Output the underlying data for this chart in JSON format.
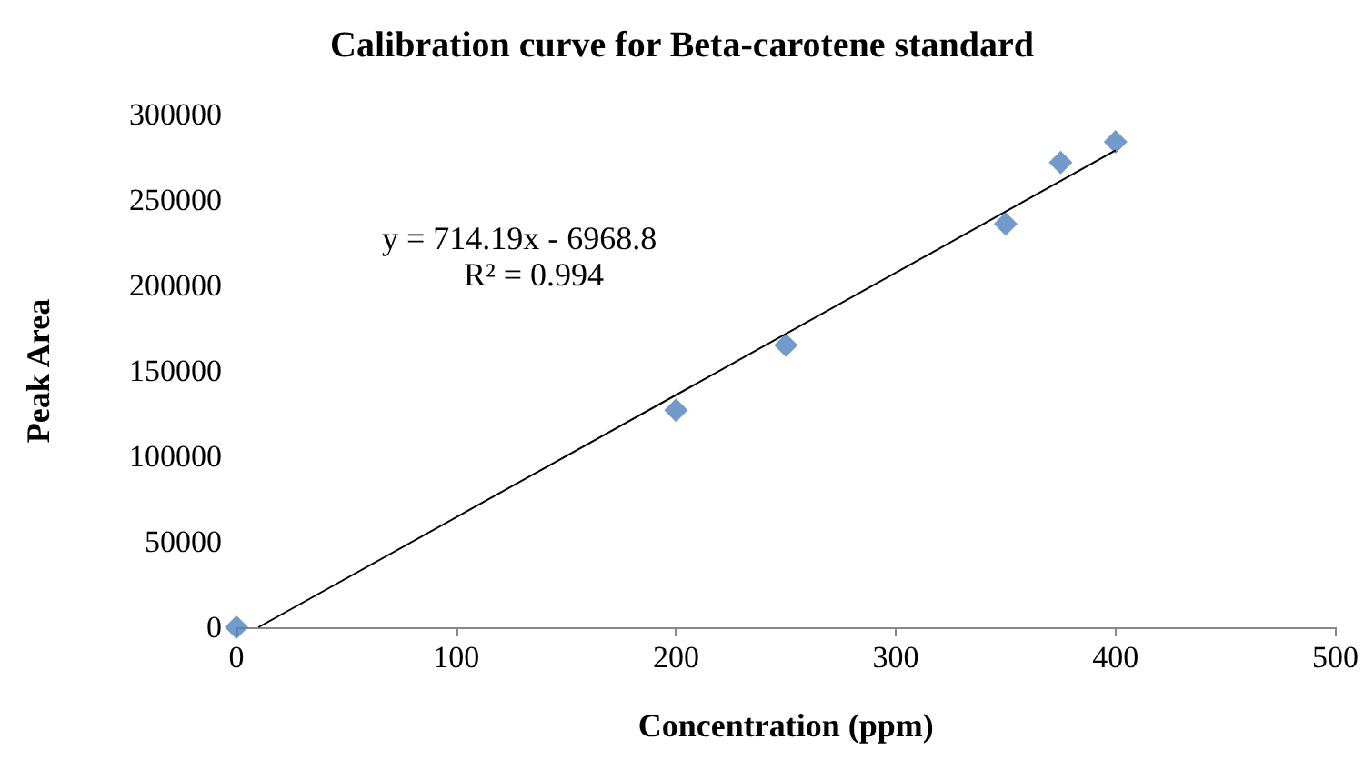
{
  "chart_data": {
    "type": "scatter",
    "title": "Calibration curve for Beta-carotene standard",
    "xlabel": "Concentration (ppm)",
    "ylabel": "Peak Area",
    "annotations": [
      "y = 714.19x - 6968.8",
      "R² = 0.994"
    ],
    "x": [
      0,
      200,
      250,
      350,
      375,
      400
    ],
    "series": [
      {
        "color": "#4f81bd",
        "marker": "diamond",
        "values": [
          0,
          127000,
          165000,
          236000,
          272000,
          284000
        ]
      },
      {
        "type": "line",
        "color": "#000000",
        "marker": "none",
        "x": [
          10,
          400
        ],
        "values": [
          0,
          279000
        ]
      }
    ],
    "xlim": [
      0,
      500
    ],
    "xticks": [
      0,
      100,
      200,
      300,
      400,
      500
    ],
    "ylim": [
      0,
      300000
    ],
    "yticks": [
      0,
      50000,
      100000,
      150000,
      200000,
      250000,
      300000
    ],
    "grid": false
  }
}
